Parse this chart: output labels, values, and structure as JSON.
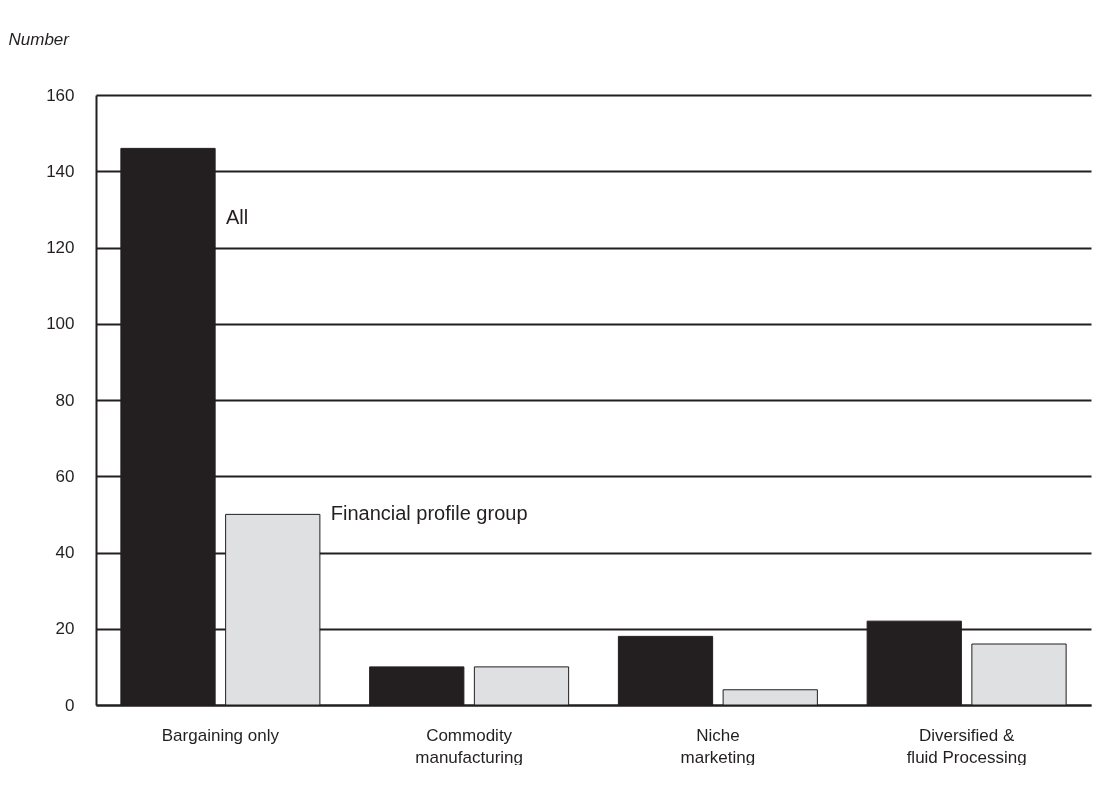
{
  "chart_data": {
    "type": "bar",
    "ylabel": "Number",
    "categories": [
      "Bargaining only",
      "Commodity\nmanufacturing",
      "Niche\nmarketing",
      "Diversified &\nfluid Processing"
    ],
    "series": [
      {
        "name": "All",
        "color": "#231f20",
        "values": [
          146,
          10,
          18,
          22
        ]
      },
      {
        "name": "Financial profile group",
        "color": "#dfe0e2",
        "values": [
          50,
          10,
          4,
          16
        ]
      }
    ],
    "ylim": [
      0,
      160
    ],
    "yticks": [
      0,
      20,
      40,
      60,
      80,
      100,
      120,
      140,
      160
    ],
    "grid": "y",
    "legend": false
  }
}
